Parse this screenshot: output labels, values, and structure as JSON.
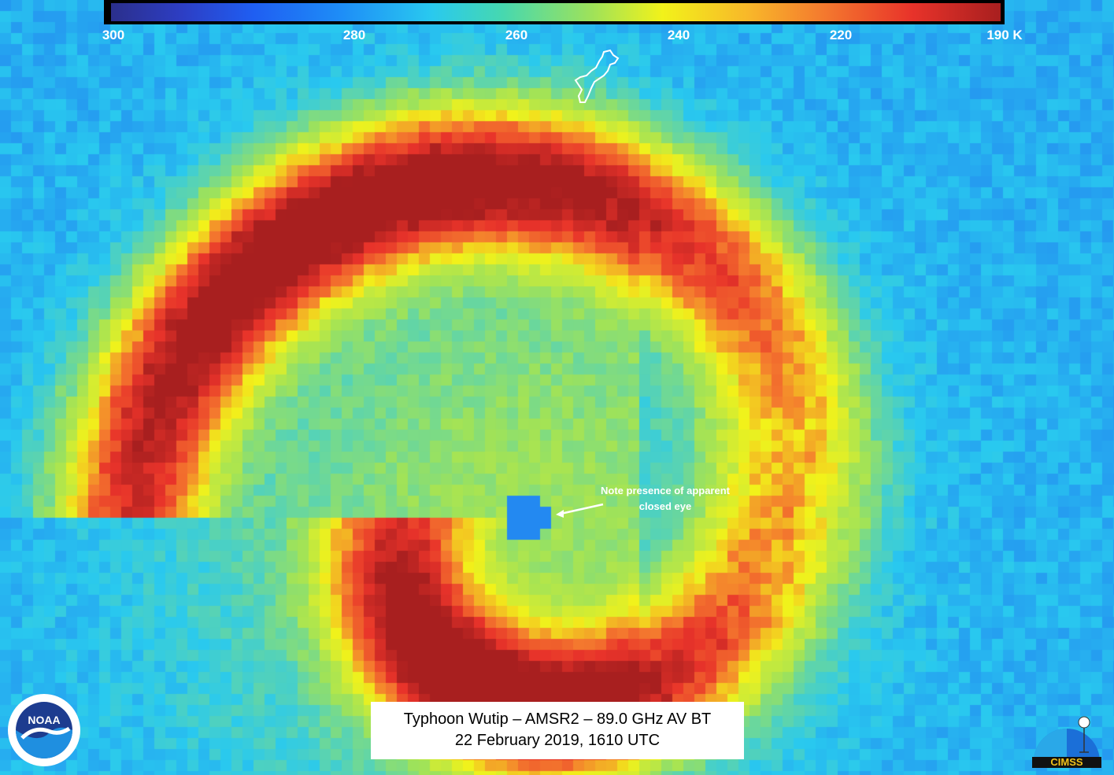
{
  "colorbar": {
    "ticks": [
      {
        "label": "300",
        "value": 300
      },
      {
        "label": "280",
        "value": 280
      },
      {
        "label": "260",
        "value": 260
      },
      {
        "label": "240",
        "value": 240
      },
      {
        "label": "220",
        "value": 220
      },
      {
        "label": "190 K",
        "value": 190
      }
    ],
    "colors": [
      "#2b2f8c",
      "#1f5ef2",
      "#29c9ef",
      "#9ee25a",
      "#f2f21a",
      "#f47a2e",
      "#e8332a",
      "#a81f1f"
    ]
  },
  "annotation": {
    "line1": "Note presence of apparent",
    "line2": "closed eye"
  },
  "title": {
    "line1": "Typhoon Wutip – AMSR2 – 89.0 GHz AV BT",
    "line2": "22 February 2019, 1610 UTC"
  },
  "logos": {
    "left": "NOAA",
    "right": "CIMSS"
  }
}
